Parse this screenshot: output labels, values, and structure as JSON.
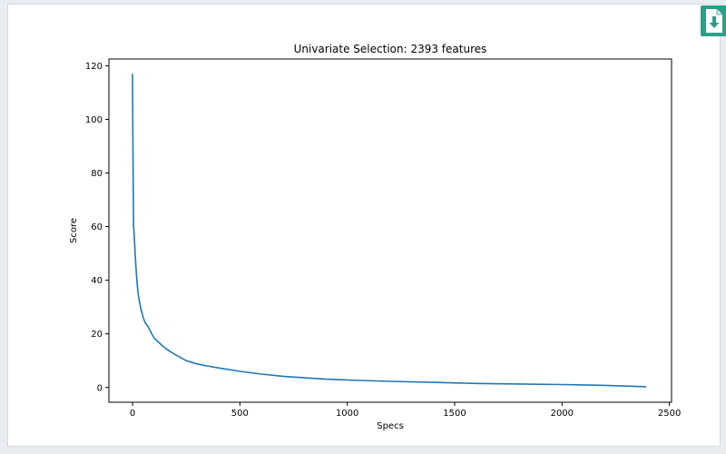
{
  "colors": {
    "line": "#1f77b4",
    "download_button": "#2e9e88",
    "axes": "#000000"
  },
  "toolbar": {
    "download_icon": "download-file-icon"
  },
  "chart_data": {
    "type": "line",
    "title": "Univariate Selection: 2393 features",
    "xlabel": "Specs",
    "ylabel": "Score",
    "xlim": [
      -110,
      2510
    ],
    "ylim": [
      -5.5,
      122.5
    ],
    "xticks": [
      0,
      500,
      1000,
      1500,
      2000,
      2500
    ],
    "xtick_labels": [
      "0",
      "500",
      "1000",
      "1500",
      "2000",
      "2500"
    ],
    "yticks": [
      0,
      20,
      40,
      60,
      80,
      100,
      120
    ],
    "ytick_labels": [
      "0",
      "20",
      "40",
      "60",
      "80",
      "100",
      "120"
    ],
    "grid": false,
    "legend": "none",
    "series": [
      {
        "x": [
          0,
          1,
          3,
          5,
          8,
          12,
          16,
          20,
          25,
          30,
          40,
          50,
          60,
          70,
          80,
          90,
          100,
          120,
          140,
          160,
          180,
          200,
          250,
          300,
          350,
          400,
          500,
          600,
          700,
          800,
          900,
          1000,
          1200,
          1400,
          1600,
          1800,
          2000,
          2200,
          2392
        ],
        "y": [
          117,
          100,
          80,
          60,
          57,
          50,
          45,
          40,
          36,
          33,
          29,
          26,
          24,
          23,
          21.5,
          20,
          18.5,
          17,
          15.5,
          14.2,
          13.2,
          12.2,
          10,
          8.8,
          8,
          7.3,
          6,
          5,
          4.2,
          3.6,
          3.1,
          2.8,
          2.3,
          1.9,
          1.5,
          1.3,
          1.1,
          0.8,
          0.3
        ]
      }
    ]
  }
}
